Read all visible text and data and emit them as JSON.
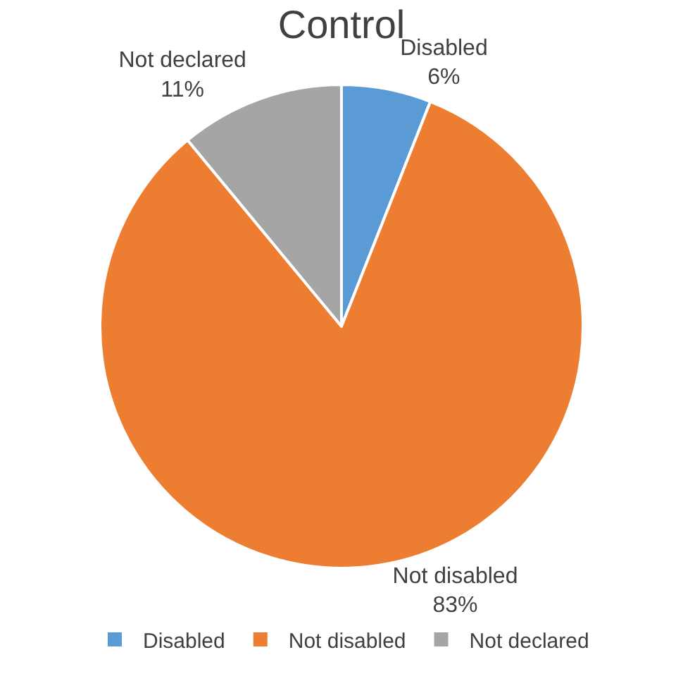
{
  "chart_data": {
    "type": "pie",
    "title": "Control",
    "categories": [
      "Disabled",
      "Not disabled",
      "Not declared"
    ],
    "values": [
      6,
      83,
      11
    ],
    "colors": [
      "#5b9bd5",
      "#ed7d31",
      "#a5a5a5"
    ],
    "value_labels": [
      "6%",
      "83%",
      "11%"
    ],
    "legend": "bottom"
  }
}
